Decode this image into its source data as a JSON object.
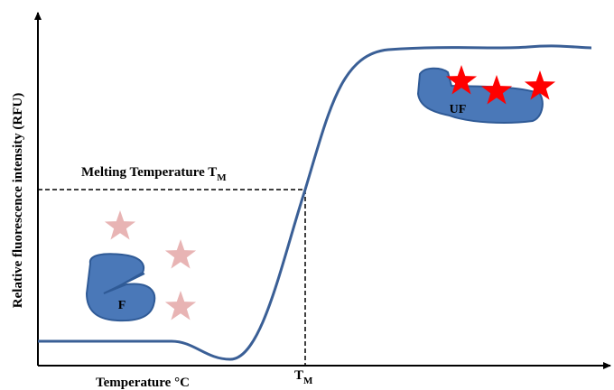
{
  "axes": {
    "y_label": "Relative fluorescence intensity (RFU)",
    "x_label": "Temperature °C"
  },
  "annotations": {
    "melting_label": "Melting Temperature T",
    "melting_subscript": "M",
    "tm_label": "T",
    "tm_subscript": "M"
  },
  "proteins": {
    "folded": "F",
    "unfolded": "UF"
  }
}
